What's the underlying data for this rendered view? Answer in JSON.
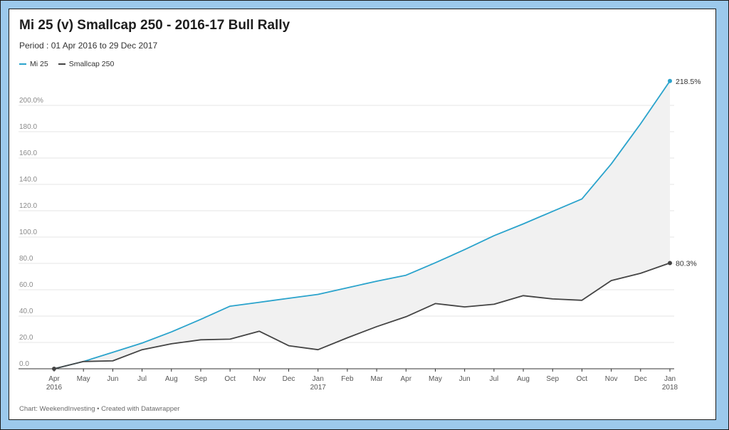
{
  "header": {
    "title": "Mi 25 (v) Smallcap 250 -  2016-17 Bull Rally",
    "subtitle": "Period : 01 Apr 2016 to 29 Dec 2017"
  },
  "footer": {
    "credit": "Chart: WeekendInvesting • Created with Datawrapper"
  },
  "colors": {
    "frame": "#9cc9ec",
    "mi25": "#2aa3cc",
    "smallcap": "#444444",
    "area": "#f1f1f1",
    "grid": "#e4e4e4"
  },
  "chart_data": {
    "type": "line",
    "y_axis": {
      "range": [
        0,
        220
      ],
      "ticks": [
        0,
        20,
        40,
        60,
        80,
        100,
        120,
        140,
        160,
        180,
        200
      ],
      "tick_labels": [
        "0.0",
        "20.0",
        "40.0",
        "60.0",
        "80.0",
        "100.0",
        "120.0",
        "140.0",
        "160.0",
        "180.0",
        "200.0%"
      ]
    },
    "x_axis": {
      "tick_labels": [
        "Apr",
        "May",
        "Jun",
        "Jul",
        "Aug",
        "Sep",
        "Oct",
        "Nov",
        "Dec",
        "Jan",
        "Feb",
        "Mar",
        "Apr",
        "May",
        "Jun",
        "Jul",
        "Aug",
        "Sep",
        "Oct",
        "Nov",
        "Dec",
        "Jan"
      ],
      "year_labels": [
        {
          "at": "Apr 2016",
          "label": "2016"
        },
        {
          "at": "Jan 2017",
          "label": "2017"
        },
        {
          "at": "Jan 2018",
          "label": "2018"
        }
      ]
    },
    "grid": "horizontal",
    "legend_position": "top-left",
    "area_between_series": true,
    "x": [
      "Apr 2016",
      "May 2016",
      "Jun 2016",
      "Jul 2016",
      "Aug 2016",
      "Sep 2016",
      "Oct 2016",
      "Nov 2016",
      "Dec 2016",
      "Jan 2017",
      "Feb 2017",
      "Mar 2017",
      "Apr 2017",
      "May 2017",
      "Jun 2017",
      "Jul 2017",
      "Aug 2017",
      "Sep 2017",
      "Oct 2017",
      "Nov 2017",
      "Dec 2017",
      "29 Dec 2017"
    ],
    "series": [
      {
        "name": "Mi 25",
        "color": "#2aa3cc",
        "end_label": "218.5%",
        "values": [
          0,
          5.5,
          12.5,
          19.5,
          28,
          37.5,
          47.5,
          50.5,
          53.5,
          56.5,
          61.5,
          66.5,
          71,
          80.5,
          90.5,
          101,
          110,
          119.5,
          129,
          155.5,
          186,
          218.5
        ]
      },
      {
        "name": "Smallcap 250",
        "color": "#444444",
        "end_label": "80.3%",
        "values": [
          0,
          5.5,
          6,
          14.5,
          19,
          22,
          22.5,
          28.5,
          17.5,
          14.5,
          23.5,
          32,
          39.5,
          49.5,
          47,
          49,
          55.5,
          53,
          52,
          67,
          72.5,
          80.3
        ]
      }
    ]
  }
}
